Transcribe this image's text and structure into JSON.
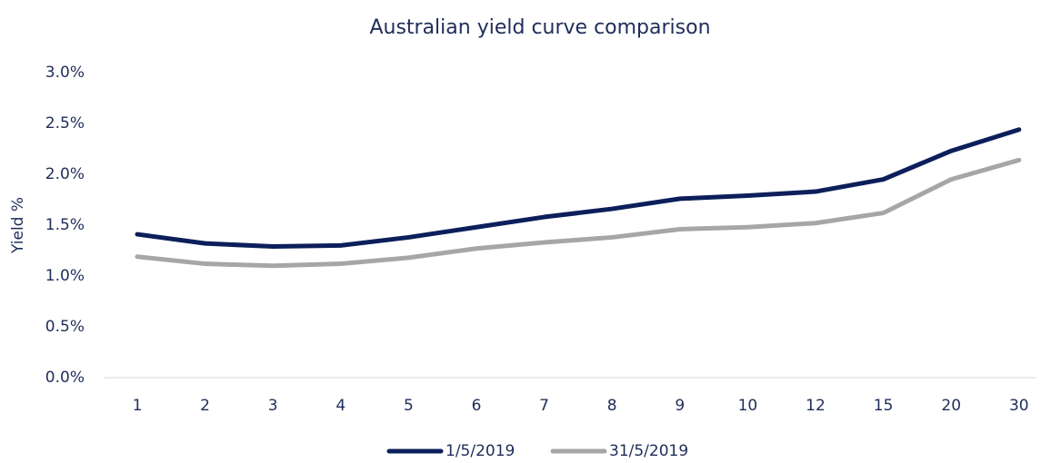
{
  "chart_data": {
    "type": "line",
    "title": "Australian yield curve comparison",
    "y_label": "Yield %",
    "categories": [
      "1",
      "2",
      "3",
      "4",
      "5",
      "6",
      "7",
      "8",
      "9",
      "10",
      "12",
      "15",
      "20",
      "30"
    ],
    "series": [
      {
        "name": "1/5/2019",
        "color": "#0c1f5b",
        "values": [
          1.41,
          1.32,
          1.29,
          1.3,
          1.38,
          1.48,
          1.58,
          1.66,
          1.76,
          1.79,
          1.83,
          1.95,
          2.23,
          2.44
        ]
      },
      {
        "name": "31/5/2019",
        "color": "#a6a6a6",
        "values": [
          1.19,
          1.12,
          1.1,
          1.12,
          1.18,
          1.27,
          1.33,
          1.38,
          1.46,
          1.48,
          1.52,
          1.62,
          1.95,
          2.14
        ]
      }
    ],
    "ylim": [
      0,
      3
    ],
    "yticks": [
      {
        "value": 0,
        "label": "0.0%"
      },
      {
        "value": 0.5,
        "label": "0.5%"
      },
      {
        "value": 1,
        "label": "1.0%"
      },
      {
        "value": 1.5,
        "label": "1.5%"
      },
      {
        "value": 2,
        "label": "2.0%"
      },
      {
        "value": 2.5,
        "label": "2.5%"
      },
      {
        "value": 3,
        "label": "3.0%"
      }
    ],
    "grid": false,
    "legend": "bottom"
  }
}
